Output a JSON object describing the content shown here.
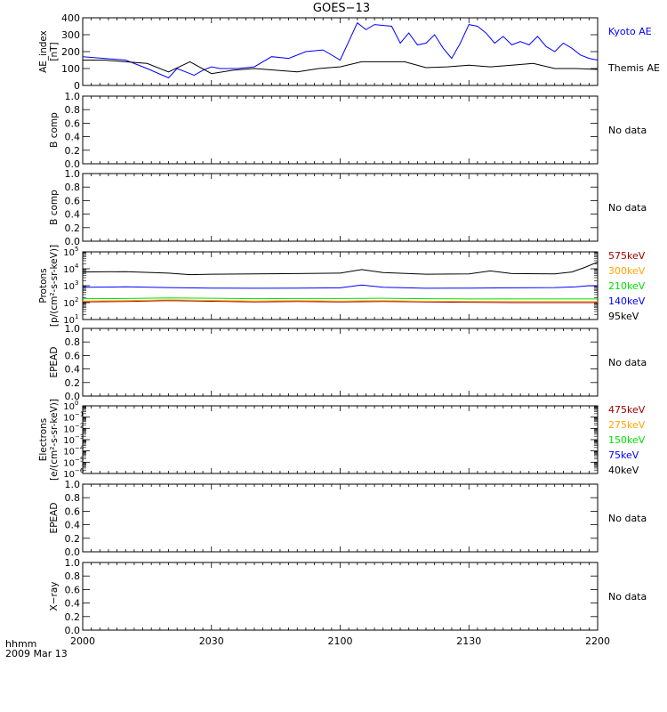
{
  "title": "GOES−13",
  "time_label": "hhmm",
  "date_label": "2009 Mar 13",
  "x_ticks": [
    "2000",
    "2030",
    "2100",
    "2130",
    "2200"
  ],
  "no_data_label": "No data",
  "colors": {
    "kyoto": "#0000ff",
    "themis": "#000000",
    "dark_red": "#a00000",
    "orange": "#ffa500",
    "green": "#00e000",
    "blue": "#0000ff",
    "black": "#000000"
  },
  "chart_data": [
    {
      "type": "line",
      "ylabel": "AE_index [nT]",
      "yscale": "linear",
      "ylim": [
        0,
        400
      ],
      "ytick_labels": [
        "0",
        "100",
        "200",
        "300",
        "400"
      ],
      "xlim": [
        0,
        120
      ],
      "series": [
        {
          "name": "Kyoto AE",
          "color": "#0000ff",
          "x": [
            0,
            5,
            10,
            15,
            20,
            22,
            24,
            26,
            28,
            30,
            32,
            36,
            40,
            44,
            48,
            52,
            56,
            60,
            64,
            66,
            68,
            72,
            74,
            76,
            78,
            80,
            82,
            84,
            86,
            88,
            90,
            92,
            94,
            96,
            98,
            100,
            102,
            104,
            106,
            108,
            110,
            112,
            114,
            116,
            118,
            120
          ],
          "y": [
            170,
            160,
            150,
            100,
            45,
            100,
            80,
            60,
            90,
            110,
            100,
            100,
            110,
            170,
            160,
            200,
            210,
            150,
            370,
            330,
            360,
            350,
            250,
            310,
            240,
            250,
            300,
            220,
            160,
            250,
            360,
            350,
            310,
            250,
            290,
            240,
            260,
            240,
            290,
            230,
            200,
            250,
            220,
            180,
            160,
            150
          ]
        },
        {
          "name": "Themis AE",
          "color": "#000000",
          "x": [
            0,
            5,
            10,
            15,
            20,
            25,
            30,
            35,
            40,
            45,
            50,
            55,
            60,
            65,
            70,
            75,
            80,
            85,
            90,
            95,
            100,
            105,
            110,
            115,
            120
          ],
          "y": [
            150,
            150,
            140,
            130,
            80,
            140,
            70,
            90,
            100,
            90,
            80,
            100,
            110,
            140,
            140,
            140,
            105,
            110,
            120,
            110,
            120,
            130,
            100,
            100,
            95
          ]
        }
      ]
    },
    {
      "type": "line",
      "ylabel": "B comp",
      "yscale": "linear",
      "ylim": [
        0,
        1
      ],
      "ytick_labels": [
        "0.0",
        "0.2",
        "0.4",
        "0.6",
        "0.8",
        "1.0"
      ],
      "series": []
    },
    {
      "type": "line",
      "ylabel": "B comp",
      "yscale": "linear",
      "ylim": [
        0,
        1
      ],
      "ytick_labels": [
        "0.0",
        "0.2",
        "0.4",
        "0.6",
        "0.8",
        "1.0"
      ],
      "series": []
    },
    {
      "type": "line",
      "ylabel": "Protons [p/(cm²-s-sr-keV)]",
      "yscale": "log",
      "ylim": [
        10,
        100000
      ],
      "ytick_labels": [
        {
          "base": "10",
          "exp": "1"
        },
        {
          "base": "10",
          "exp": "2"
        },
        {
          "base": "10",
          "exp": "3"
        },
        {
          "base": "10",
          "exp": "4"
        },
        {
          "base": "10",
          "exp": "5"
        }
      ],
      "series": [
        {
          "name": "575keV",
          "color": "#a00000",
          "x": [
            0,
            10,
            20,
            30,
            40,
            50,
            60,
            70,
            80,
            90,
            100,
            110,
            120
          ],
          "y": [
            110,
            115,
            130,
            120,
            110,
            115,
            110,
            115,
            110,
            105,
            100,
            100,
            100
          ]
        },
        {
          "name": "300keV",
          "color": "#ffa500",
          "x": [
            0,
            10,
            20,
            30,
            40,
            50,
            60,
            70,
            80,
            90,
            100,
            110,
            120
          ],
          "y": [
            125,
            130,
            145,
            135,
            125,
            130,
            125,
            130,
            120,
            118,
            115,
            115,
            115
          ]
        },
        {
          "name": "210keV",
          "color": "#00e000",
          "x": [
            0,
            10,
            20,
            30,
            40,
            50,
            60,
            70,
            80,
            90,
            100,
            110,
            120
          ],
          "y": [
            170,
            175,
            190,
            180,
            170,
            175,
            175,
            180,
            170,
            165,
            165,
            165,
            165
          ]
        },
        {
          "name": "140keV",
          "color": "#0000ff",
          "x": [
            0,
            10,
            20,
            30,
            40,
            50,
            60,
            65,
            70,
            80,
            90,
            100,
            110,
            115,
            118,
            120
          ],
          "y": [
            800,
            850,
            780,
            720,
            700,
            720,
            750,
            1100,
            800,
            700,
            720,
            750,
            780,
            850,
            1000,
            950
          ]
        },
        {
          "name": "95keV",
          "color": "#000000",
          "x": [
            0,
            10,
            20,
            25,
            30,
            40,
            50,
            60,
            65,
            70,
            80,
            90,
            95,
            100,
            110,
            114,
            117,
            120
          ],
          "y": [
            6500,
            6800,
            5500,
            4500,
            4800,
            5000,
            5200,
            5500,
            9000,
            6000,
            4800,
            5000,
            7500,
            5200,
            5000,
            6500,
            12000,
            25000
          ]
        }
      ]
    },
    {
      "type": "line",
      "ylabel": "EPEAD",
      "yscale": "linear",
      "ylim": [
        0,
        1
      ],
      "ytick_labels": [
        "0.0",
        "0.2",
        "0.4",
        "0.6",
        "0.8",
        "1.0"
      ],
      "series": []
    },
    {
      "type": "line",
      "ylabel": "Electrons [e/(cm²-s-sr-keV)]",
      "yscale": "log",
      "ylim": [
        1e-06,
        1
      ],
      "ytick_labels": [
        {
          "base": "10",
          "exp": "−6"
        },
        {
          "base": "10",
          "exp": "−5"
        },
        {
          "base": "10",
          "exp": "−4"
        },
        {
          "base": "10",
          "exp": "−3"
        },
        {
          "base": "10",
          "exp": "−2"
        },
        {
          "base": "10",
          "exp": "−1"
        },
        {
          "base": "10",
          "exp": "0"
        }
      ],
      "series": [
        {
          "name": "475keV",
          "color": "#a00000"
        },
        {
          "name": "275keV",
          "color": "#ffa500"
        },
        {
          "name": "150keV",
          "color": "#00e000"
        },
        {
          "name": "75keV",
          "color": "#0000ff"
        },
        {
          "name": "40keV",
          "color": "#000000"
        }
      ]
    },
    {
      "type": "line",
      "ylabel": "EPEAD",
      "yscale": "linear",
      "ylim": [
        0,
        1
      ],
      "ytick_labels": [
        "0.0",
        "0.2",
        "0.4",
        "0.6",
        "0.8",
        "1.0"
      ],
      "series": []
    },
    {
      "type": "line",
      "ylabel": "X−ray",
      "yscale": "linear",
      "ylim": [
        0,
        1
      ],
      "ytick_labels": [
        "0.0",
        "0.2",
        "0.4",
        "0.6",
        "0.8",
        "1.0"
      ],
      "series": []
    }
  ]
}
